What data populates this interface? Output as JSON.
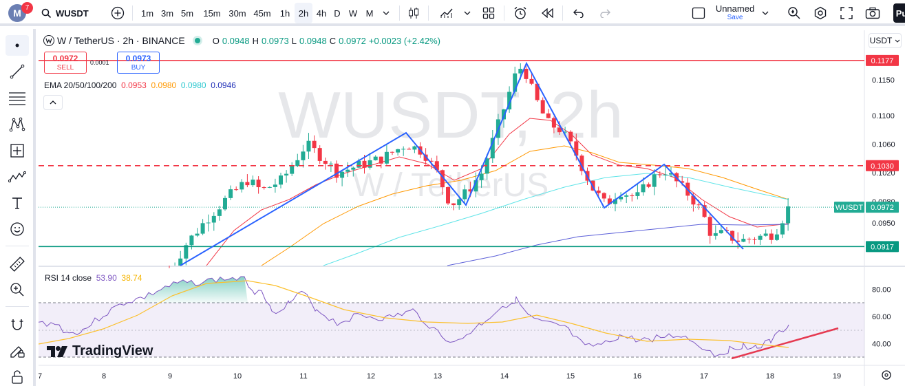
{
  "topbar": {
    "avatar_letter": "M",
    "notifications": "7",
    "symbol": "WUSDT",
    "timeframes": [
      "1m",
      "3m",
      "5m",
      "15m",
      "30m",
      "45m",
      "1h",
      "2h",
      "4h",
      "D",
      "W",
      "M"
    ],
    "active_timeframe": "2h",
    "layout_name": "Unnamed",
    "save_label": "Save",
    "publish_label": "Pu"
  },
  "legend": {
    "title": "W / TetherUS · 2h · BINANCE",
    "open_label": "O",
    "open": "0.0948",
    "high_label": "H",
    "high": "0.0973",
    "low_label": "L",
    "low": "0.0948",
    "close_label": "C",
    "close": "0.0972",
    "change": "+0.0023 (+2.42%)",
    "sell_price": "0.0972",
    "sell_label": "SELL",
    "buy_price": "0.0973",
    "buy_label": "BUY",
    "spread": "0.0001",
    "ema_label": "EMA 20/50/100/200",
    "ema20": "0.0953",
    "ema50": "0.0980",
    "ema100": "0.0980",
    "ema200": "0.0946"
  },
  "watermark": {
    "symbol": "WUSDT, 2h",
    "name": "W / TetherUS"
  },
  "price_axis": {
    "currency": "USDT",
    "labels": [
      "0.1150",
      "0.1100",
      "0.1060",
      "0.1020",
      "0.0980",
      "0.0950"
    ],
    "tags": [
      {
        "text": "0.1177",
        "color": "#f23645"
      },
      {
        "text": "0.1030",
        "color": "#f23645"
      },
      {
        "text": "0.0972",
        "color": "#22ab94"
      },
      {
        "text": "0.0917",
        "color": "#089981"
      }
    ],
    "symbol_tag": "WUSDT"
  },
  "rsi": {
    "label": "RSI 14 close",
    "value": "53.90",
    "ma_value": "38.74",
    "axis_labels": [
      "80.00",
      "60.00",
      "40.00"
    ]
  },
  "time_axis": {
    "labels": [
      "7",
      "8",
      "9",
      "10",
      "11",
      "12",
      "13",
      "14",
      "15",
      "16",
      "17",
      "18",
      "19"
    ]
  },
  "branding": {
    "text": "TradingView"
  },
  "colors": {
    "up": "#22ab94",
    "down": "#f23645",
    "ema20": "#f23645",
    "ema50": "#ff9800",
    "ema100": "#5ee4e8",
    "ema200": "#5b5fd8",
    "zigzag": "#2962ff",
    "rsi": "#7e57c2",
    "rsi_ma": "#fbc02d"
  }
}
